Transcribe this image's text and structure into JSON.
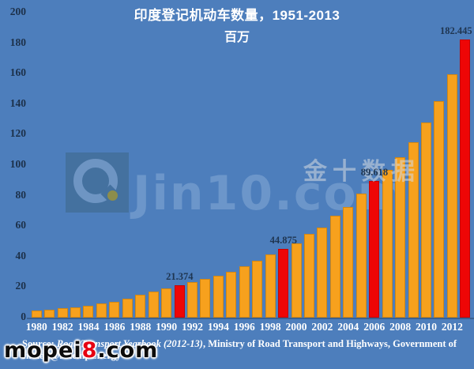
{
  "header": {
    "title": "印度登记机动车数量，1951-2013",
    "subtitle": "百万"
  },
  "watermarks": {
    "jin10_logo": "jin10-logo",
    "jin10_text": "Jin10.com",
    "jin10_chinese": "金十数据",
    "mopei_prefix": "mopei",
    "mopei_digit": "8",
    "mopei_suffix": ".com"
  },
  "source": {
    "prefix": "Source: ",
    "italic_title": "Road Transport Yearbook (2012-13)",
    "rest": ", Ministry of Road Transport and Highways, Government of India; @JKempEnergy"
  },
  "colors": {
    "background": "#4d7ebc",
    "bar": "#f7a11d",
    "highlight_bar": "#ee0606",
    "axis_line": "#3b6191",
    "title_text": "#ffffff",
    "tick_text_y": "#1c3049",
    "tick_text_x": "#ffffff",
    "data_label_text": "#1f3550",
    "mopei_digit_red": "#e60012"
  },
  "chart_data": {
    "type": "bar",
    "title": "印度登记机动车数量，1951-2013",
    "subtitle": "百万",
    "xlabel": "",
    "ylabel": "百万",
    "ylim": [
      0,
      200
    ],
    "yticks": [
      0,
      20,
      40,
      60,
      80,
      100,
      120,
      140,
      160,
      180,
      200
    ],
    "grid": false,
    "legend_position": "none",
    "categories": [
      1980,
      1981,
      1982,
      1983,
      1984,
      1985,
      1986,
      1987,
      1988,
      1989,
      1990,
      1991,
      1992,
      1993,
      1994,
      1995,
      1996,
      1997,
      1998,
      1999,
      2000,
      2001,
      2002,
      2003,
      2004,
      2005,
      2006,
      2007,
      2008,
      2009,
      2010,
      2011,
      2012,
      2013
    ],
    "xtick_labels": [
      "1980",
      "1982",
      "1984",
      "1986",
      "1988",
      "1990",
      "1992",
      "1994",
      "1996",
      "1998",
      "2000",
      "2002",
      "2004",
      "2006",
      "2008",
      "2010",
      "2012"
    ],
    "values": [
      4.521,
      5.391,
      6.055,
      6.912,
      7.949,
      9.17,
      10.577,
      12.618,
      14.818,
      16.92,
      19.152,
      21.374,
      23.507,
      25.505,
      27.66,
      30.295,
      33.786,
      37.332,
      41.368,
      44.875,
      48.857,
      54.991,
      58.924,
      67.007,
      72.718,
      81.501,
      89.618,
      96.707,
      105.353,
      114.951,
      127.746,
      141.866,
      159.49,
      182.445
    ],
    "highlights": [
      {
        "year": 1991,
        "index": 11,
        "label": "21.374"
      },
      {
        "year": 1999,
        "index": 19,
        "label": "44.875"
      },
      {
        "year": 2006,
        "index": 26,
        "label": "89.618"
      },
      {
        "year": 2013,
        "index": 33,
        "label": "182.445"
      }
    ]
  }
}
